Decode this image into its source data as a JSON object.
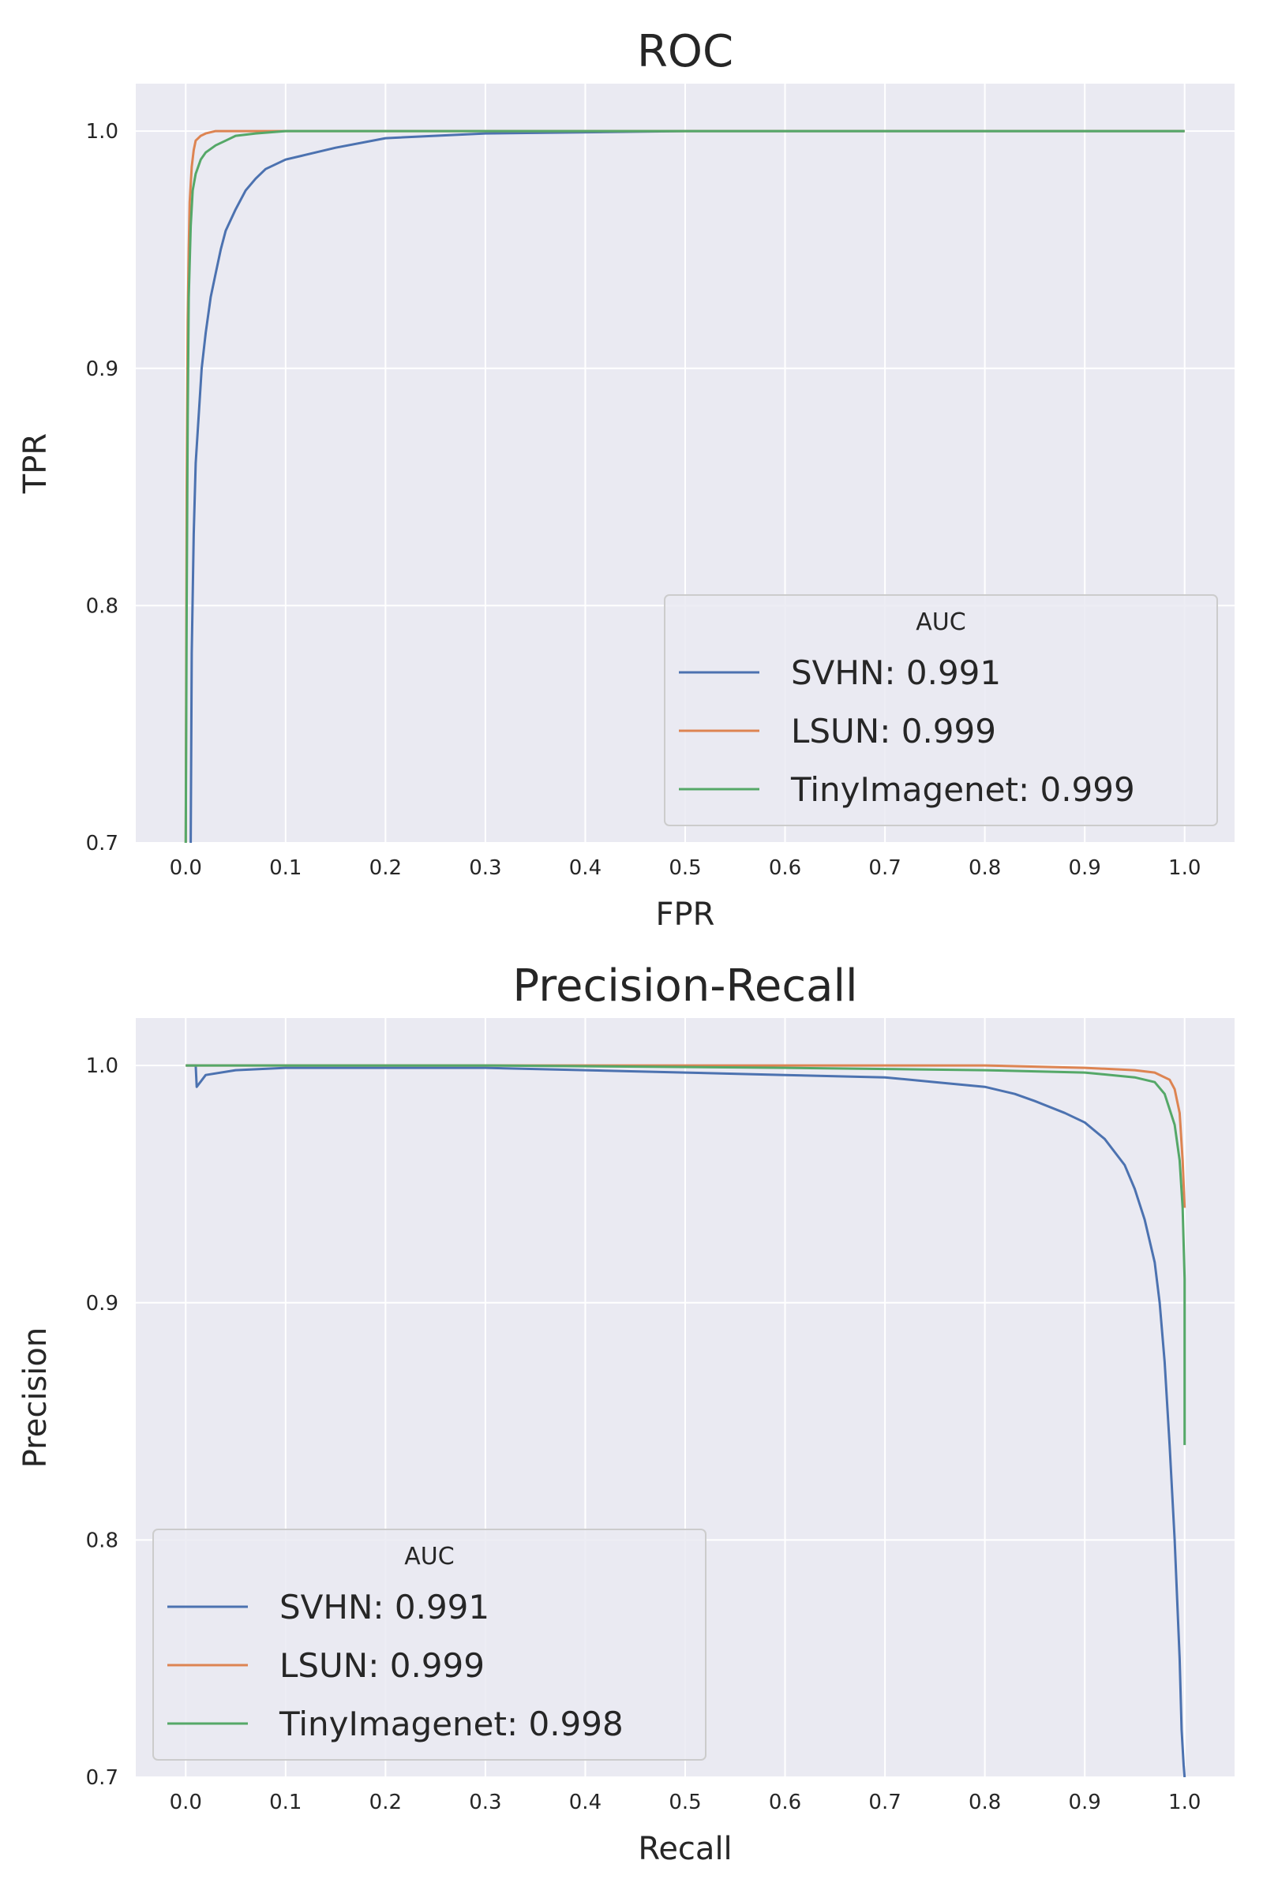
{
  "chart_data": [
    {
      "type": "line",
      "title": "ROC",
      "xlabel": "FPR",
      "ylabel": "TPR",
      "xlim": [
        -0.05,
        1.05
      ],
      "ylim": [
        0.7,
        1.02
      ],
      "xticks": [
        "0.0",
        "0.1",
        "0.2",
        "0.3",
        "0.4",
        "0.5",
        "0.6",
        "0.7",
        "0.8",
        "0.9",
        "1.0"
      ],
      "yticks": [
        "0.7",
        "0.8",
        "0.9",
        "1.0"
      ],
      "grid": true,
      "legend": {
        "title": "AUC",
        "placement": "lower-right"
      },
      "series": [
        {
          "name": "SVHN: 0.991",
          "color": "#4c72b0",
          "x": [
            0.005,
            0.006,
            0.008,
            0.01,
            0.013,
            0.016,
            0.02,
            0.025,
            0.03,
            0.035,
            0.04,
            0.05,
            0.06,
            0.07,
            0.08,
            0.1,
            0.12,
            0.15,
            0.2,
            0.3,
            0.5,
            1.0
          ],
          "y": [
            0.7,
            0.78,
            0.83,
            0.86,
            0.88,
            0.9,
            0.915,
            0.93,
            0.94,
            0.95,
            0.958,
            0.967,
            0.975,
            0.98,
            0.984,
            0.988,
            0.99,
            0.993,
            0.997,
            0.999,
            1.0,
            1.0
          ]
        },
        {
          "name": "LSUN: 0.999",
          "color": "#dd8452",
          "x": [
            0.0,
            0.001,
            0.002,
            0.003,
            0.004,
            0.006,
            0.008,
            0.01,
            0.015,
            0.02,
            0.03,
            0.05,
            1.0
          ],
          "y": [
            0.7,
            0.85,
            0.92,
            0.95,
            0.97,
            0.985,
            0.992,
            0.996,
            0.998,
            0.999,
            1.0,
            1.0,
            1.0
          ]
        },
        {
          "name": "TinyImagenet: 0.999",
          "color": "#55a868",
          "x": [
            0.0,
            0.001,
            0.002,
            0.003,
            0.005,
            0.007,
            0.01,
            0.015,
            0.02,
            0.03,
            0.04,
            0.05,
            0.07,
            0.1,
            1.0
          ],
          "y": [
            0.7,
            0.8,
            0.88,
            0.93,
            0.96,
            0.975,
            0.982,
            0.988,
            0.991,
            0.994,
            0.996,
            0.998,
            0.999,
            1.0,
            1.0
          ]
        }
      ]
    },
    {
      "type": "line",
      "title": "Precision-Recall",
      "xlabel": "Recall",
      "ylabel": "Precision",
      "xlim": [
        -0.05,
        1.05
      ],
      "ylim": [
        0.7,
        1.02
      ],
      "xticks": [
        "0.0",
        "0.1",
        "0.2",
        "0.3",
        "0.4",
        "0.5",
        "0.6",
        "0.7",
        "0.8",
        "0.9",
        "1.0"
      ],
      "yticks": [
        "0.7",
        "0.8",
        "0.9",
        "1.0"
      ],
      "grid": true,
      "legend": {
        "title": "AUC",
        "placement": "lower-left"
      },
      "series": [
        {
          "name": "SVHN: 0.991",
          "color": "#4c72b0",
          "x": [
            0.0,
            0.01,
            0.011,
            0.02,
            0.05,
            0.1,
            0.2,
            0.3,
            0.4,
            0.5,
            0.6,
            0.7,
            0.75,
            0.8,
            0.83,
            0.85,
            0.88,
            0.9,
            0.92,
            0.94,
            0.95,
            0.96,
            0.97,
            0.975,
            0.98,
            0.985,
            0.99,
            0.995,
            0.997,
            0.999,
            1.0
          ],
          "y": [
            1.0,
            1.0,
            0.991,
            0.996,
            0.998,
            0.999,
            0.999,
            0.999,
            0.998,
            0.997,
            0.996,
            0.995,
            0.993,
            0.991,
            0.988,
            0.985,
            0.98,
            0.976,
            0.969,
            0.958,
            0.948,
            0.935,
            0.917,
            0.9,
            0.875,
            0.84,
            0.8,
            0.75,
            0.72,
            0.705,
            0.7
          ]
        },
        {
          "name": "LSUN: 0.999",
          "color": "#dd8452",
          "x": [
            0.0,
            0.2,
            0.5,
            0.8,
            0.9,
            0.95,
            0.97,
            0.985,
            0.99,
            0.995,
            0.998,
            1.0
          ],
          "y": [
            1.0,
            1.0,
            1.0,
            1.0,
            0.999,
            0.998,
            0.997,
            0.994,
            0.99,
            0.98,
            0.96,
            0.94
          ]
        },
        {
          "name": "TinyImagenet: 0.998",
          "color": "#55a868",
          "x": [
            0.0,
            0.3,
            0.6,
            0.8,
            0.9,
            0.95,
            0.97,
            0.98,
            0.99,
            0.995,
            0.998,
            1.0,
            1.0
          ],
          "y": [
            1.0,
            1.0,
            0.999,
            0.998,
            0.997,
            0.995,
            0.993,
            0.988,
            0.975,
            0.96,
            0.94,
            0.91,
            0.84
          ]
        }
      ]
    }
  ]
}
